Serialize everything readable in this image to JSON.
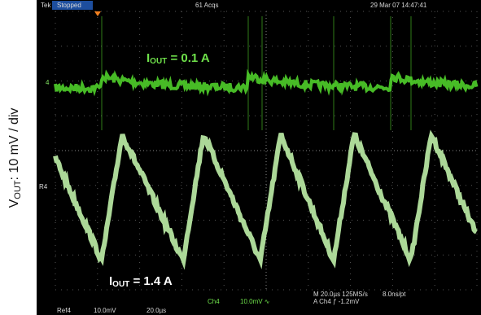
{
  "header": {
    "scope": "Tek",
    "status": "Stopped",
    "acquisitions": "61 Acqs",
    "timestamp": "29 Mar 07 14:47:41"
  },
  "y_axis_label": {
    "main": "V",
    "sub": "OUT",
    "rest": ": 10 mV / div"
  },
  "annotations": [
    {
      "main": "I",
      "sub": "OUT",
      "rest": " = 0.1 A"
    },
    {
      "main": "I",
      "sub": "OUT",
      "rest": " = 1.4 A"
    }
  ],
  "markers": [
    "4",
    "R4"
  ],
  "footer": {
    "ref": "Ref4",
    "ref_scale": "10.0mV",
    "ref_time": "20.0µs",
    "channel": "Ch4",
    "channel_scale": "10.0mV ∿",
    "timebase": "M 20.0µs 125MS/s",
    "resolution": "8.0ns/pt",
    "trigger": "A  Ch4  ƒ  -1.2mV"
  }
}
